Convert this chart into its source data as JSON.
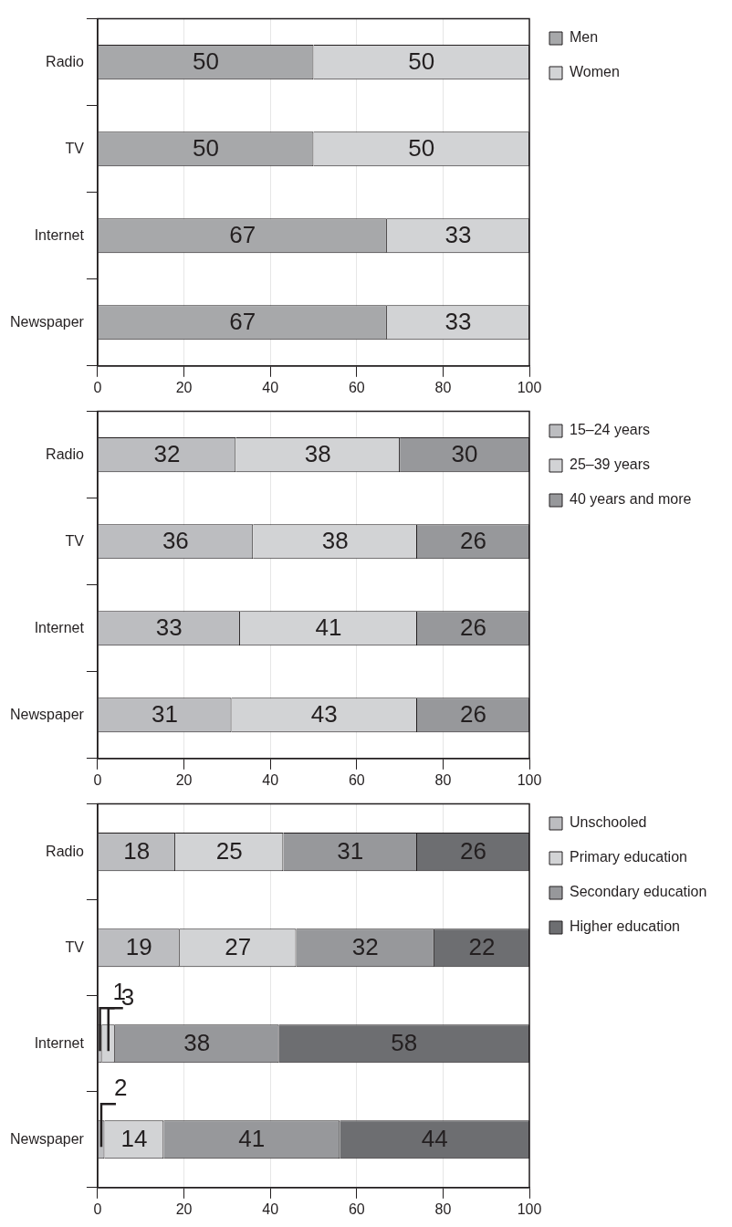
{
  "chart_data": [
    {
      "type": "bar",
      "orientation": "horizontal",
      "stacked": true,
      "categories": [
        "Radio",
        "TV",
        "Internet",
        "Newspaper"
      ],
      "xlim": [
        0,
        100
      ],
      "xticks": [
        0,
        20,
        40,
        60,
        80,
        100
      ],
      "grid": "x",
      "legend": "right",
      "data_labels": true,
      "series": [
        {
          "name": "Men",
          "color": "#a7a8aa",
          "values": [
            50,
            50,
            67,
            67
          ]
        },
        {
          "name": "Women",
          "color": "#d2d3d5",
          "values": [
            50,
            50,
            33,
            33
          ]
        }
      ]
    },
    {
      "type": "bar",
      "orientation": "horizontal",
      "stacked": true,
      "categories": [
        "Radio",
        "TV",
        "Internet",
        "Newspaper"
      ],
      "xlim": [
        0,
        100
      ],
      "xticks": [
        0,
        20,
        40,
        60,
        80,
        100
      ],
      "grid": "x",
      "legend": "right",
      "data_labels": true,
      "series": [
        {
          "name": "15–24 years",
          "color": "#bcbdc0",
          "values": [
            32,
            36,
            33,
            31
          ]
        },
        {
          "name": "25–39 years",
          "color": "#d2d3d5",
          "values": [
            38,
            38,
            41,
            43
          ]
        },
        {
          "name": "40 years and more",
          "color": "#97989b",
          "values": [
            30,
            26,
            26,
            26
          ]
        }
      ]
    },
    {
      "type": "bar",
      "orientation": "horizontal",
      "stacked": true,
      "categories": [
        "Radio",
        "TV",
        "Internet",
        "Newspaper"
      ],
      "xlim": [
        0,
        100
      ],
      "xticks": [
        0,
        20,
        40,
        60,
        80,
        100
      ],
      "grid": "x",
      "legend": "right",
      "series": [
        {
          "name": "Unschooled",
          "color": "#bcbdc0",
          "values": [
            18,
            19,
            1,
            1.6
          ],
          "value_labels": [
            "18",
            "19",
            "1",
            "2"
          ]
        },
        {
          "name": "Primary education",
          "color": "#d2d3d5",
          "values": [
            25,
            27,
            3,
            13.7
          ],
          "value_labels": [
            "25",
            "27",
            "3",
            "14"
          ]
        },
        {
          "name": "Secondary education",
          "color": "#97989b",
          "values": [
            31,
            32,
            38,
            40.8
          ],
          "value_labels": [
            "31",
            "32",
            "38",
            "41"
          ]
        },
        {
          "name": "Higher education",
          "color": "#6d6e71",
          "values": [
            26,
            22,
            58,
            43.9
          ],
          "value_labels": [
            "26",
            "22",
            "58",
            "44"
          ]
        }
      ]
    }
  ]
}
